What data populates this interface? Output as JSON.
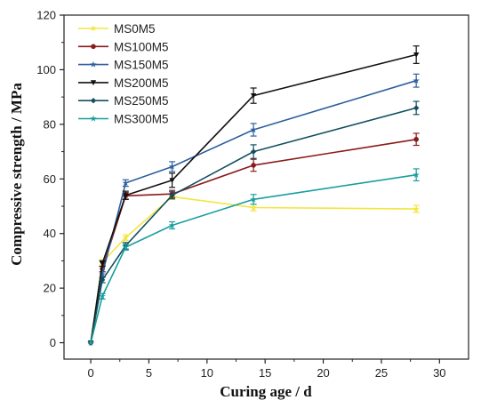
{
  "chart_data": {
    "type": "line",
    "title": "",
    "xlabel": "Curing age / d",
    "ylabel": "Compressive strength / MPa",
    "xlim": [
      -2.3,
      32.5
    ],
    "ylim": [
      -6,
      120
    ],
    "xticks": [
      0,
      5,
      10,
      15,
      20,
      25,
      30
    ],
    "yticks": [
      0,
      20,
      40,
      60,
      80,
      100,
      120
    ],
    "x_tick_labels": [
      "0",
      "5",
      "10",
      "15",
      "20",
      "25",
      "30"
    ],
    "y_tick_labels": [
      "0",
      "20",
      "40",
      "60",
      "80",
      "100",
      "120"
    ],
    "grid": false,
    "legend": "top-left",
    "x": [
      0,
      1,
      3,
      7,
      14,
      28
    ],
    "series": [
      {
        "name": "MS0M5",
        "color": "#f5e53b",
        "marker": "star",
        "values": [
          0,
          29.5,
          38.5,
          53.5,
          49.5,
          49
        ],
        "errors": [
          0,
          1,
          1,
          1,
          1.2,
          1.3
        ]
      },
      {
        "name": "MS100M5",
        "color": "#8b1a1a",
        "marker": "circle",
        "values": [
          0,
          27,
          53.8,
          54.5,
          65,
          74.5
        ],
        "errors": [
          0,
          1,
          1.2,
          1.3,
          2.2,
          2.2
        ]
      },
      {
        "name": "MS150M5",
        "color": "#2e5f9e",
        "marker": "star",
        "values": [
          0,
          25,
          58.5,
          64.5,
          78,
          96
        ],
        "errors": [
          0,
          1,
          1.2,
          1.8,
          2.3,
          2.4
        ]
      },
      {
        "name": "MS200M5",
        "color": "#111111",
        "marker": "triangle-down",
        "values": [
          0,
          29,
          54,
          59.5,
          90.5,
          105.5
        ],
        "errors": [
          0,
          1,
          1.5,
          2.6,
          2.8,
          3.2
        ]
      },
      {
        "name": "MS250M5",
        "color": "#124f5e",
        "marker": "diamond",
        "values": [
          0,
          23,
          35.5,
          54,
          70,
          86
        ],
        "errors": [
          0,
          1,
          1.2,
          1.3,
          2.5,
          2.4
        ]
      },
      {
        "name": "MS300M5",
        "color": "#1a9e9e",
        "marker": "star",
        "values": [
          0,
          17,
          35,
          43,
          52.5,
          61.5
        ],
        "errors": [
          0,
          1,
          1.1,
          1.3,
          1.8,
          2.2
        ]
      }
    ]
  }
}
